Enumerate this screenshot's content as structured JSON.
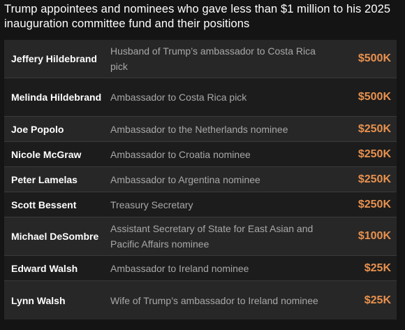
{
  "title": "Trump appointees and nominees who gave less than $1 million to his 2025 inauguration committee fund and their positions",
  "colors": {
    "background": "#141414",
    "row_dark": "#1c1c1c",
    "row_light": "#272727",
    "amount": "#e8914f",
    "position_text": "#a8a8a8"
  },
  "rows": [
    {
      "name": "Jeffery Hildebrand",
      "position": "Husband of Trump’s ambassador to Costa Rica pick",
      "amount": "$500K"
    },
    {
      "name": "Melinda Hildebrand",
      "position": "Ambassador to Costa Rica pick",
      "amount": "$500K"
    },
    {
      "name": "Joe Popolo",
      "position": "Ambassador to the Netherlands nominee",
      "amount": "$250K"
    },
    {
      "name": "Nicole McGraw",
      "position": "Ambassador to Croatia nominee",
      "amount": "$250K"
    },
    {
      "name": "Peter Lamelas",
      "position": "Ambassador to Argentina nominee",
      "amount": "$250K"
    },
    {
      "name": "Scott Bessent",
      "position": "Treasury Secretary",
      "amount": "$250K"
    },
    {
      "name": "Michael DeSombre",
      "position": "Assistant Secretary of State for East Asian and Pacific Affairs nominee",
      "amount": "$100K"
    },
    {
      "name": "Edward Walsh",
      "position": "Ambassador to Ireland nominee",
      "amount": "$25K"
    },
    {
      "name": "Lynn Walsh",
      "position": "Wife of Trump’s ambassador to Ireland nominee",
      "amount": "$25K"
    }
  ]
}
